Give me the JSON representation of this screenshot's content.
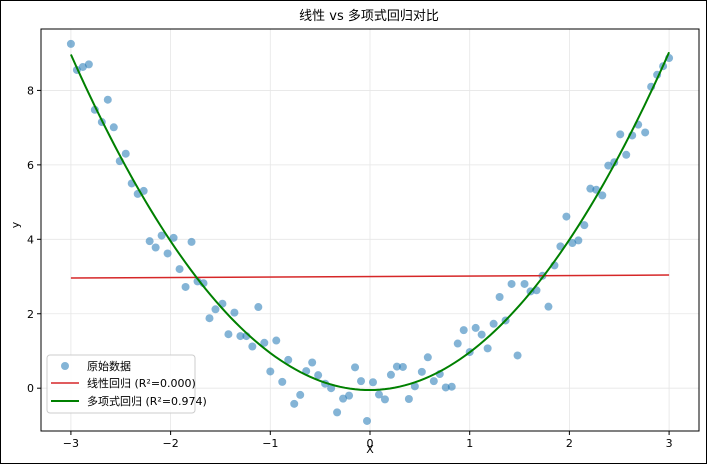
{
  "chart_data": {
    "type": "scatter",
    "title": "线性 vs 多项式回归对比",
    "xlabel": "X",
    "ylabel": "y",
    "xlim": [
      -3.3,
      3.3
    ],
    "ylim": [
      -1.15,
      9.65
    ],
    "xticks": [
      -3,
      -2,
      -1,
      0,
      1,
      2,
      3
    ],
    "yticks": [
      0,
      2,
      4,
      6,
      8
    ],
    "xtick_labels": [
      "−3",
      "−2",
      "−1",
      "0",
      "1",
      "2",
      "3"
    ],
    "ytick_labels": [
      "0",
      "2",
      "4",
      "6",
      "8"
    ],
    "grid": true,
    "legend_position": "lower-left",
    "series": [
      {
        "name": "原始数据",
        "kind": "scatter",
        "color": "#1f77b4",
        "points": [
          [
            -3.0,
            9.25
          ],
          [
            -2.94,
            8.55
          ],
          [
            -2.88,
            8.63
          ],
          [
            -2.82,
            8.7
          ],
          [
            -2.76,
            7.48
          ],
          [
            -2.69,
            7.15
          ],
          [
            -2.63,
            7.75
          ],
          [
            -2.57,
            7.01
          ],
          [
            -2.51,
            6.1
          ],
          [
            -2.45,
            6.3
          ],
          [
            -2.39,
            5.5
          ],
          [
            -2.33,
            5.22
          ],
          [
            -2.27,
            5.3
          ],
          [
            -2.21,
            3.95
          ],
          [
            -2.15,
            3.78
          ],
          [
            -2.09,
            4.1
          ],
          [
            -2.03,
            3.62
          ],
          [
            -1.97,
            4.04
          ],
          [
            -1.91,
            3.2
          ],
          [
            -1.85,
            2.72
          ],
          [
            -1.79,
            3.93
          ],
          [
            -1.73,
            2.87
          ],
          [
            -1.67,
            2.82
          ],
          [
            -1.61,
            1.88
          ],
          [
            -1.55,
            2.12
          ],
          [
            -1.48,
            2.27
          ],
          [
            -1.42,
            1.45
          ],
          [
            -1.36,
            2.03
          ],
          [
            -1.3,
            1.4
          ],
          [
            -1.24,
            1.4
          ],
          [
            -1.18,
            1.12
          ],
          [
            -1.12,
            2.18
          ],
          [
            -1.06,
            1.22
          ],
          [
            -1.0,
            0.45
          ],
          [
            -0.94,
            1.28
          ],
          [
            -0.88,
            0.17
          ],
          [
            -0.82,
            0.76
          ],
          [
            -0.76,
            -0.42
          ],
          [
            -0.7,
            -0.18
          ],
          [
            -0.64,
            0.46
          ],
          [
            -0.58,
            0.69
          ],
          [
            -0.52,
            0.35
          ],
          [
            -0.45,
            0.12
          ],
          [
            -0.39,
            0.0
          ],
          [
            -0.33,
            -0.65
          ],
          [
            -0.27,
            -0.28
          ],
          [
            -0.21,
            -0.2
          ],
          [
            -0.15,
            0.56
          ],
          [
            -0.09,
            0.19
          ],
          [
            -0.03,
            -0.88
          ],
          [
            0.03,
            0.16
          ],
          [
            0.09,
            -0.17
          ],
          [
            0.15,
            -0.3
          ],
          [
            0.21,
            0.36
          ],
          [
            0.27,
            0.58
          ],
          [
            0.33,
            0.57
          ],
          [
            0.39,
            -0.29
          ],
          [
            0.45,
            0.05
          ],
          [
            0.52,
            0.44
          ],
          [
            0.58,
            0.83
          ],
          [
            0.64,
            0.19
          ],
          [
            0.7,
            0.38
          ],
          [
            0.76,
            0.02
          ],
          [
            0.82,
            0.04
          ],
          [
            0.88,
            1.2
          ],
          [
            0.94,
            1.56
          ],
          [
            1.0,
            0.97
          ],
          [
            1.06,
            1.62
          ],
          [
            1.12,
            1.44
          ],
          [
            1.18,
            1.07
          ],
          [
            1.24,
            1.73
          ],
          [
            1.3,
            2.45
          ],
          [
            1.36,
            1.82
          ],
          [
            1.42,
            2.8
          ],
          [
            1.48,
            0.88
          ],
          [
            1.55,
            2.8
          ],
          [
            1.61,
            2.6
          ],
          [
            1.67,
            2.63
          ],
          [
            1.73,
            3.02
          ],
          [
            1.79,
            2.19
          ],
          [
            1.85,
            3.3
          ],
          [
            1.91,
            3.81
          ],
          [
            1.97,
            4.61
          ],
          [
            2.03,
            3.9
          ],
          [
            2.09,
            3.97
          ],
          [
            2.15,
            4.38
          ],
          [
            2.21,
            5.36
          ],
          [
            2.27,
            5.33
          ],
          [
            2.33,
            5.18
          ],
          [
            2.39,
            5.98
          ],
          [
            2.45,
            6.07
          ],
          [
            2.51,
            6.82
          ],
          [
            2.57,
            6.27
          ],
          [
            2.63,
            6.79
          ],
          [
            2.69,
            7.08
          ],
          [
            2.76,
            6.87
          ],
          [
            2.82,
            8.1
          ],
          [
            2.88,
            8.42
          ],
          [
            2.94,
            8.65
          ],
          [
            3.0,
            8.87
          ]
        ]
      },
      {
        "name": "线性回归 (R²=0.000)",
        "kind": "line",
        "color": "#d62728",
        "x": [
          -3,
          3
        ],
        "y": [
          2.96,
          3.04
        ]
      },
      {
        "name": "多项式回归 (R²=0.974)",
        "kind": "line",
        "color": "#008000",
        "poly": [
          -0.05,
          0.01,
          1.005
        ],
        "x_range": [
          -3,
          3
        ]
      }
    ]
  }
}
